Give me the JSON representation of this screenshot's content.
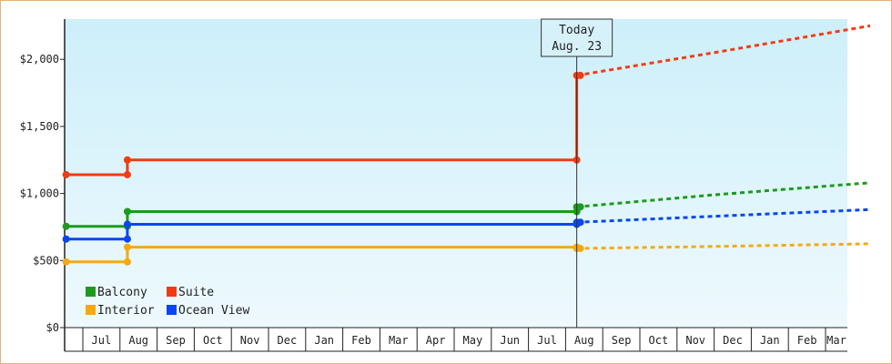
{
  "chart_data": {
    "type": "line",
    "title": "",
    "xlabel": "",
    "ylabel": "",
    "ylim": [
      0,
      2300
    ],
    "y_ticks": [
      {
        "value": 0,
        "label": "$0"
      },
      {
        "value": 500,
        "label": "$500"
      },
      {
        "value": 1000,
        "label": "$1,000"
      },
      {
        "value": 1500,
        "label": "$1,500"
      },
      {
        "value": 2000,
        "label": "$2,000"
      }
    ],
    "month_labels": [
      "Jul",
      "Aug",
      "Sep",
      "Oct",
      "Nov",
      "Dec",
      "Jan",
      "Feb",
      "Mar",
      "Apr",
      "May",
      "Jun",
      "Jul",
      "Aug",
      "Sep",
      "Oct",
      "Nov",
      "Dec",
      "Jan",
      "Feb",
      "Mar"
    ],
    "x_range": [
      0,
      21.2
    ],
    "today": {
      "x": 13.3,
      "line1": "Today",
      "line2": "Aug. 23"
    },
    "grid": false,
    "legend_position": "bottom-left",
    "legend": [
      {
        "name": "Balcony",
        "color": "#1e9a1e"
      },
      {
        "name": "Suite",
        "color": "#f03c14"
      },
      {
        "name": "Interior",
        "color": "#f5a814"
      },
      {
        "name": "Ocean View",
        "color": "#0a46f0"
      }
    ],
    "series": [
      {
        "name": "Suite",
        "color": "#f03c14",
        "steps": [
          [
            -0.45,
            1140
          ],
          [
            1.2,
            1250
          ],
          [
            13.3,
            1880
          ]
        ],
        "end_solid_x": 13.3,
        "forecast": [
          [
            13.3,
            1880
          ],
          [
            17.0,
            2050
          ],
          [
            21.2,
            2250
          ]
        ]
      },
      {
        "name": "Balcony",
        "color": "#1e9a1e",
        "steps": [
          [
            -0.45,
            755
          ],
          [
            1.2,
            865
          ],
          [
            13.3,
            900
          ]
        ],
        "end_solid_x": 13.3,
        "forecast": [
          [
            13.3,
            900
          ],
          [
            17.0,
            990
          ],
          [
            21.2,
            1080
          ]
        ]
      },
      {
        "name": "Ocean View",
        "color": "#0a46f0",
        "steps": [
          [
            -0.45,
            660
          ],
          [
            1.2,
            770
          ],
          [
            13.3,
            785
          ]
        ],
        "end_solid_x": 13.3,
        "forecast": [
          [
            13.3,
            785
          ],
          [
            17.0,
            830
          ],
          [
            21.2,
            880
          ]
        ]
      },
      {
        "name": "Interior",
        "color": "#f5a814",
        "steps": [
          [
            -0.45,
            490
          ],
          [
            1.2,
            600
          ],
          [
            13.3,
            590
          ]
        ],
        "end_solid_x": 13.3,
        "forecast": [
          [
            13.3,
            590
          ],
          [
            17.0,
            605
          ],
          [
            21.2,
            625
          ]
        ]
      }
    ]
  }
}
